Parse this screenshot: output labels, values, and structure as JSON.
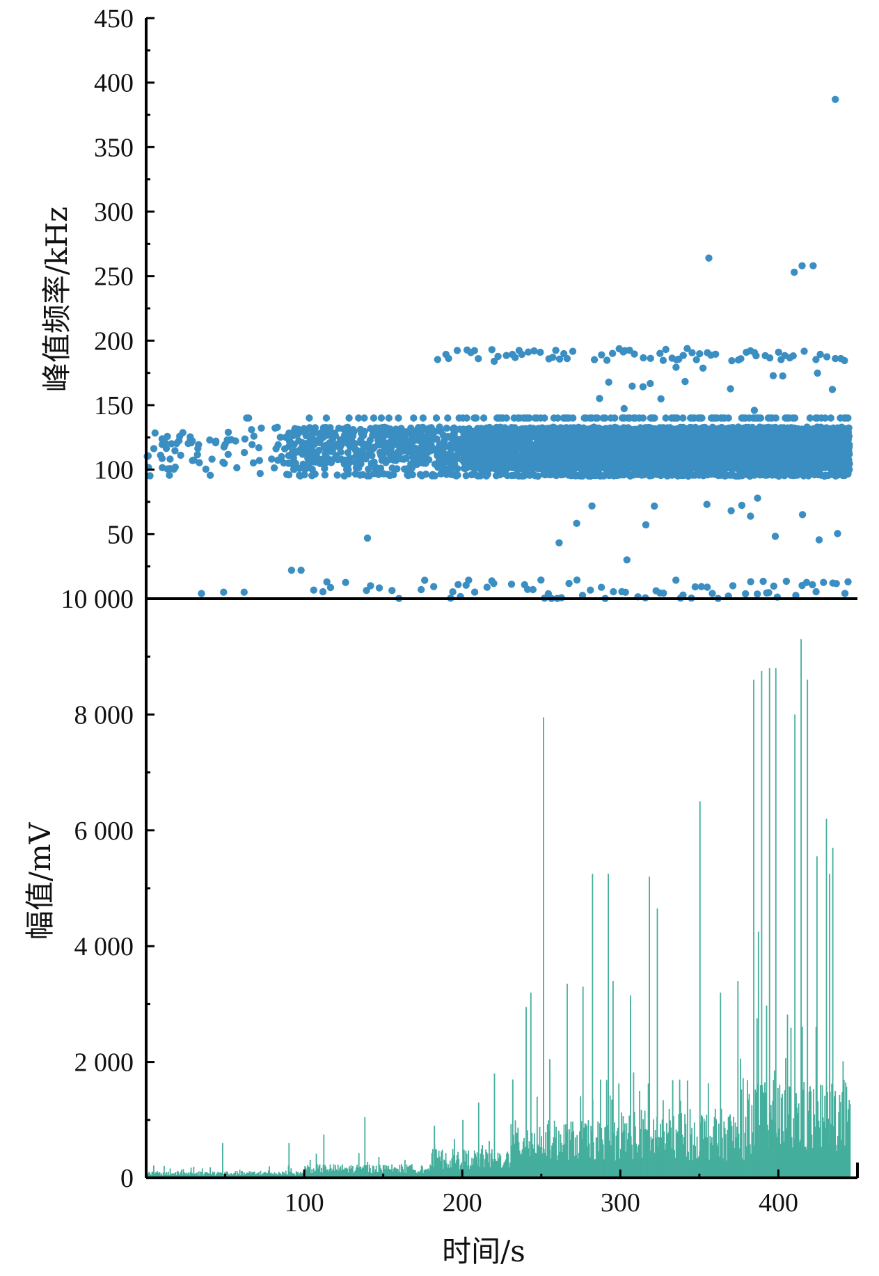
{
  "chart_data": [
    {
      "type": "scatter",
      "title": "",
      "xlabel": "",
      "ylabel": "峰值频率/kHz",
      "xlim": [
        0,
        450
      ],
      "ylim": [
        0,
        450
      ],
      "y_ticks": [
        {
          "value": 0,
          "label": "10 000"
        },
        {
          "value": 50,
          "label": "50"
        },
        {
          "value": 100,
          "label": "100"
        },
        {
          "value": 150,
          "label": "150"
        },
        {
          "value": 200,
          "label": "200"
        },
        {
          "value": 250,
          "label": "250"
        },
        {
          "value": 300,
          "label": "300"
        },
        {
          "value": 350,
          "label": "350"
        },
        {
          "value": 400,
          "label": "400"
        },
        {
          "value": 450,
          "label": "450"
        }
      ],
      "grid": false,
      "legend": "none",
      "color": "#3a8ec2",
      "outliers": [
        [
          436,
          387
        ],
        [
          356,
          264
        ],
        [
          410,
          253
        ],
        [
          415,
          258
        ],
        [
          422,
          258
        ],
        [
          49,
          5
        ],
        [
          35,
          4
        ],
        [
          62,
          5
        ],
        [
          140,
          47
        ],
        [
          92,
          22
        ],
        [
          98,
          22
        ]
      ],
      "bands": [
        {
          "x_start": 0,
          "x_end": 445,
          "y_min": 95,
          "y_max": 135,
          "density": "dense-line"
        },
        {
          "x_start": 170,
          "x_end": 445,
          "y_min": 184,
          "y_max": 194,
          "density": "medium"
        },
        {
          "x_start": 100,
          "x_end": 445,
          "y_min": 0,
          "y_max": 15,
          "density": "medium"
        },
        {
          "x_start": 260,
          "x_end": 445,
          "y_min": 30,
          "y_max": 80,
          "density": "sparse"
        },
        {
          "x_start": 280,
          "x_end": 445,
          "y_min": 140,
          "y_max": 180,
          "density": "sparse"
        }
      ]
    },
    {
      "type": "bar",
      "title": "",
      "xlabel": "时间/s",
      "ylabel": "幅值/mV",
      "xlim": [
        0,
        450
      ],
      "ylim": [
        0,
        10000
      ],
      "x_ticks": [
        100,
        200,
        300,
        400
      ],
      "y_ticks": [
        {
          "value": 0,
          "label": "0"
        },
        {
          "value": 2000,
          "label": "2 000"
        },
        {
          "value": 4000,
          "label": "4 000"
        },
        {
          "value": 6000,
          "label": "6 000"
        },
        {
          "value": 8000,
          "label": "8 000"
        },
        {
          "value": 10000,
          "label": "10 000"
        }
      ],
      "grid": false,
      "legend": "none",
      "color": "#45ae9c",
      "peaks": [
        [
          48,
          600
        ],
        [
          90,
          600
        ],
        [
          112,
          750
        ],
        [
          138,
          1050
        ],
        [
          182,
          900
        ],
        [
          200,
          1000
        ],
        [
          210,
          1300
        ],
        [
          220,
          1800
        ],
        [
          240,
          2950
        ],
        [
          243,
          3200
        ],
        [
          251,
          7950
        ],
        [
          255,
          2050
        ],
        [
          266,
          3350
        ],
        [
          276,
          3300
        ],
        [
          282,
          5250
        ],
        [
          292,
          5250
        ],
        [
          295,
          3400
        ],
        [
          306,
          3150
        ],
        [
          318,
          5200
        ],
        [
          323,
          4650
        ],
        [
          350,
          6500
        ],
        [
          363,
          3200
        ],
        [
          374,
          3400
        ],
        [
          384,
          8600
        ],
        [
          387,
          4250
        ],
        [
          389,
          8750
        ],
        [
          394,
          8800
        ],
        [
          398,
          8800
        ],
        [
          410,
          8000
        ],
        [
          414,
          9300
        ],
        [
          418,
          8600
        ],
        [
          424,
          5550
        ],
        [
          430,
          6200
        ],
        [
          432,
          5250
        ],
        [
          434,
          5700
        ]
      ]
    }
  ]
}
